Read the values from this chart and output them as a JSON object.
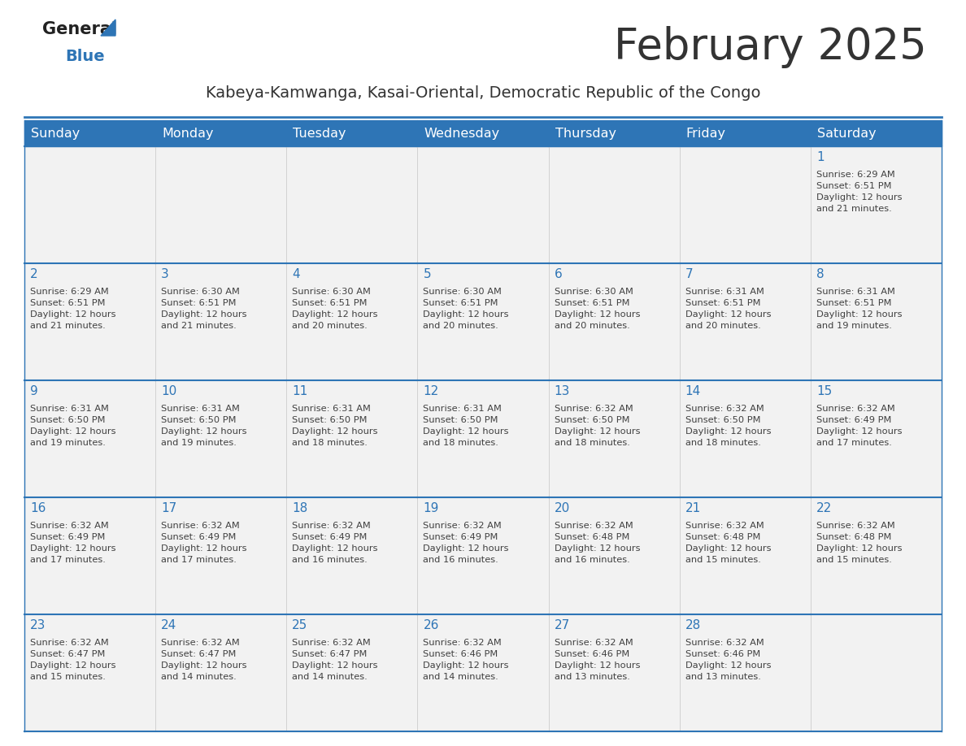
{
  "title": "February 2025",
  "subtitle": "Kabeya-Kamwanga, Kasai-Oriental, Democratic Republic of the Congo",
  "days_of_week": [
    "Sunday",
    "Monday",
    "Tuesday",
    "Wednesday",
    "Thursday",
    "Friday",
    "Saturday"
  ],
  "header_bg": "#2E75B6",
  "header_text": "#FFFFFF",
  "cell_bg": "#F2F2F2",
  "day_number_color": "#2E75B6",
  "info_text_color": "#404040",
  "border_color": "#2E75B6",
  "row_separator_color": "#AAAAAA",
  "title_color": "#333333",
  "subtitle_color": "#333333",
  "title_fontsize": 38,
  "subtitle_fontsize": 14,
  "header_fontsize": 11.5,
  "day_num_fontsize": 11,
  "info_fontsize": 8.2,
  "weeks": [
    [
      {
        "day": null,
        "info": null
      },
      {
        "day": null,
        "info": null
      },
      {
        "day": null,
        "info": null
      },
      {
        "day": null,
        "info": null
      },
      {
        "day": null,
        "info": null
      },
      {
        "day": null,
        "info": null
      },
      {
        "day": 1,
        "info": "Sunrise: 6:29 AM\nSunset: 6:51 PM\nDaylight: 12 hours\nand 21 minutes."
      }
    ],
    [
      {
        "day": 2,
        "info": "Sunrise: 6:29 AM\nSunset: 6:51 PM\nDaylight: 12 hours\nand 21 minutes."
      },
      {
        "day": 3,
        "info": "Sunrise: 6:30 AM\nSunset: 6:51 PM\nDaylight: 12 hours\nand 21 minutes."
      },
      {
        "day": 4,
        "info": "Sunrise: 6:30 AM\nSunset: 6:51 PM\nDaylight: 12 hours\nand 20 minutes."
      },
      {
        "day": 5,
        "info": "Sunrise: 6:30 AM\nSunset: 6:51 PM\nDaylight: 12 hours\nand 20 minutes."
      },
      {
        "day": 6,
        "info": "Sunrise: 6:30 AM\nSunset: 6:51 PM\nDaylight: 12 hours\nand 20 minutes."
      },
      {
        "day": 7,
        "info": "Sunrise: 6:31 AM\nSunset: 6:51 PM\nDaylight: 12 hours\nand 20 minutes."
      },
      {
        "day": 8,
        "info": "Sunrise: 6:31 AM\nSunset: 6:51 PM\nDaylight: 12 hours\nand 19 minutes."
      }
    ],
    [
      {
        "day": 9,
        "info": "Sunrise: 6:31 AM\nSunset: 6:50 PM\nDaylight: 12 hours\nand 19 minutes."
      },
      {
        "day": 10,
        "info": "Sunrise: 6:31 AM\nSunset: 6:50 PM\nDaylight: 12 hours\nand 19 minutes."
      },
      {
        "day": 11,
        "info": "Sunrise: 6:31 AM\nSunset: 6:50 PM\nDaylight: 12 hours\nand 18 minutes."
      },
      {
        "day": 12,
        "info": "Sunrise: 6:31 AM\nSunset: 6:50 PM\nDaylight: 12 hours\nand 18 minutes."
      },
      {
        "day": 13,
        "info": "Sunrise: 6:32 AM\nSunset: 6:50 PM\nDaylight: 12 hours\nand 18 minutes."
      },
      {
        "day": 14,
        "info": "Sunrise: 6:32 AM\nSunset: 6:50 PM\nDaylight: 12 hours\nand 18 minutes."
      },
      {
        "day": 15,
        "info": "Sunrise: 6:32 AM\nSunset: 6:49 PM\nDaylight: 12 hours\nand 17 minutes."
      }
    ],
    [
      {
        "day": 16,
        "info": "Sunrise: 6:32 AM\nSunset: 6:49 PM\nDaylight: 12 hours\nand 17 minutes."
      },
      {
        "day": 17,
        "info": "Sunrise: 6:32 AM\nSunset: 6:49 PM\nDaylight: 12 hours\nand 17 minutes."
      },
      {
        "day": 18,
        "info": "Sunrise: 6:32 AM\nSunset: 6:49 PM\nDaylight: 12 hours\nand 16 minutes."
      },
      {
        "day": 19,
        "info": "Sunrise: 6:32 AM\nSunset: 6:49 PM\nDaylight: 12 hours\nand 16 minutes."
      },
      {
        "day": 20,
        "info": "Sunrise: 6:32 AM\nSunset: 6:48 PM\nDaylight: 12 hours\nand 16 minutes."
      },
      {
        "day": 21,
        "info": "Sunrise: 6:32 AM\nSunset: 6:48 PM\nDaylight: 12 hours\nand 15 minutes."
      },
      {
        "day": 22,
        "info": "Sunrise: 6:32 AM\nSunset: 6:48 PM\nDaylight: 12 hours\nand 15 minutes."
      }
    ],
    [
      {
        "day": 23,
        "info": "Sunrise: 6:32 AM\nSunset: 6:47 PM\nDaylight: 12 hours\nand 15 minutes."
      },
      {
        "day": 24,
        "info": "Sunrise: 6:32 AM\nSunset: 6:47 PM\nDaylight: 12 hours\nand 14 minutes."
      },
      {
        "day": 25,
        "info": "Sunrise: 6:32 AM\nSunset: 6:47 PM\nDaylight: 12 hours\nand 14 minutes."
      },
      {
        "day": 26,
        "info": "Sunrise: 6:32 AM\nSunset: 6:46 PM\nDaylight: 12 hours\nand 14 minutes."
      },
      {
        "day": 27,
        "info": "Sunrise: 6:32 AM\nSunset: 6:46 PM\nDaylight: 12 hours\nand 13 minutes."
      },
      {
        "day": 28,
        "info": "Sunrise: 6:32 AM\nSunset: 6:46 PM\nDaylight: 12 hours\nand 13 minutes."
      },
      {
        "day": null,
        "info": null
      }
    ]
  ]
}
